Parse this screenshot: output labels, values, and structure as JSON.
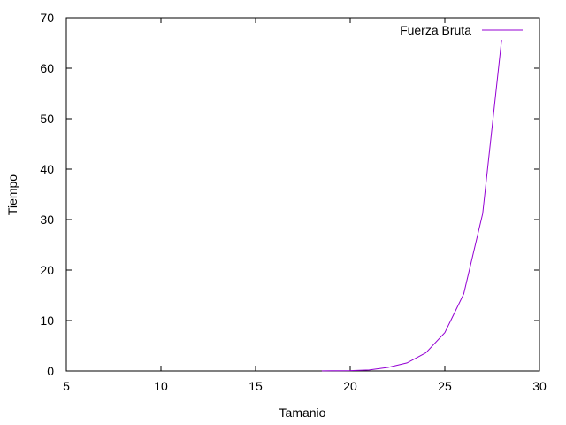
{
  "chart_data": {
    "type": "line",
    "title": "",
    "xlabel": "Tamanio",
    "ylabel": "Tiempo",
    "xlim": [
      5,
      30
    ],
    "ylim": [
      0,
      70
    ],
    "xticks": [
      5,
      10,
      15,
      20,
      25,
      30
    ],
    "yticks": [
      0,
      10,
      20,
      30,
      40,
      50,
      60,
      70
    ],
    "grid": false,
    "legend_position": "top-right",
    "series": [
      {
        "name": "Fuerza Bruta",
        "color": "#9400d3",
        "x": [
          18.5,
          19,
          20,
          21,
          22,
          23,
          24,
          25,
          26,
          27,
          28
        ],
        "y": [
          0.02,
          0.03,
          0.07,
          0.2,
          0.7,
          1.6,
          3.6,
          7.6,
          15.3,
          31.2,
          65.6
        ]
      }
    ]
  }
}
